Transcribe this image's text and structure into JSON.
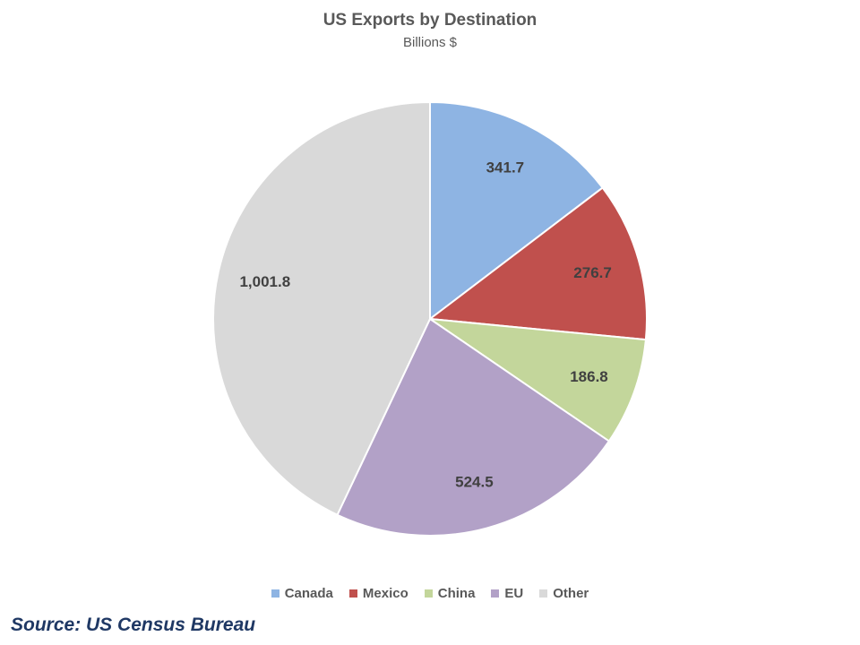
{
  "chart_data": {
    "type": "pie",
    "title": "US Exports by Destination",
    "subtitle": "Billions $",
    "categories": [
      "Canada",
      "Mexico",
      "China",
      "EU",
      "Other"
    ],
    "values": [
      341.7,
      276.7,
      186.8,
      524.5,
      1001.8
    ],
    "data_labels": [
      "341.7",
      "276.7",
      "186.8",
      "524.5",
      "1,001.8"
    ],
    "colors": [
      "#8eb4e3",
      "#c0504d",
      "#c3d69b",
      "#b2a1c7",
      "#d9d9d9"
    ],
    "start_angle_deg": 0,
    "direction": "clockwise",
    "legend_position": "bottom"
  },
  "source": "Source: US Census Bureau"
}
